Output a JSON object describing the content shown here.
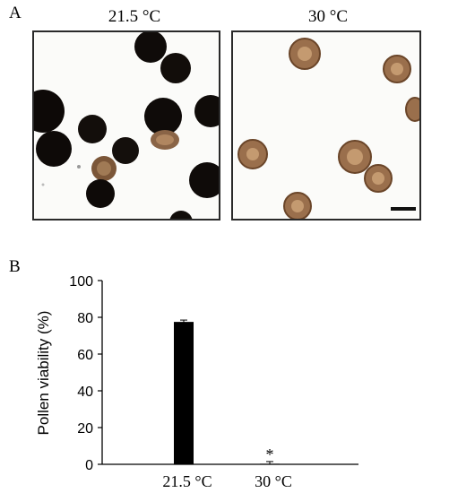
{
  "panel_a": {
    "letter": "A",
    "left_label": "21.5 °C",
    "right_label": "30 °C"
  },
  "panel_b": {
    "letter": "B"
  },
  "chart_data": {
    "type": "bar",
    "categories": [
      "21.5 °C",
      "30 °C"
    ],
    "values": [
      77.5,
      0.3
    ],
    "errors": [
      1.0,
      1.2
    ],
    "ylabel": "Pollen viability (%)",
    "xlabel": "",
    "ylim": [
      0,
      100
    ],
    "yticks": [
      0,
      20,
      40,
      60,
      80,
      100
    ],
    "annotations": [
      {
        "category": "30 °C",
        "text": "*"
      }
    ],
    "grid": false,
    "bar_color": "#000000"
  }
}
